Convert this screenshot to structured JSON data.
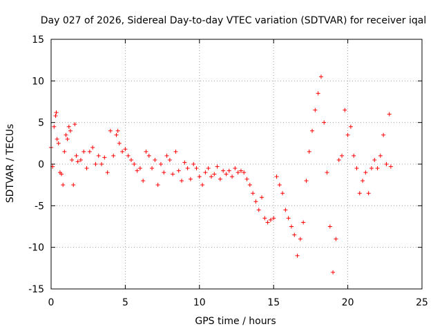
{
  "chart_data": {
    "type": "scatter",
    "title": "Day 027 of 2026, Sidereal Day-to-day VTEC variation (SDTVAR) for receiver iqal",
    "xlabel": "GPS time / hours",
    "ylabel": "SDTVAR / TECUs",
    "xlim": [
      0,
      25
    ],
    "ylim": [
      -15,
      15
    ],
    "xticks": [
      0,
      5,
      10,
      15,
      20,
      25
    ],
    "yticks": [
      -15,
      -10,
      -5,
      0,
      5,
      10,
      15
    ],
    "grid": true,
    "marker": "+",
    "series": [
      {
        "name": "SDTVAR",
        "color": "#ff0000",
        "points": [
          [
            0.0,
            2.0
          ],
          [
            0.1,
            -0.3
          ],
          [
            0.2,
            4.5
          ],
          [
            0.3,
            5.8
          ],
          [
            0.35,
            6.2
          ],
          [
            0.4,
            3.0
          ],
          [
            0.5,
            2.5
          ],
          [
            0.6,
            -1.0
          ],
          [
            0.7,
            -1.2
          ],
          [
            0.8,
            -2.5
          ],
          [
            0.9,
            1.5
          ],
          [
            1.0,
            3.5
          ],
          [
            1.1,
            3.0
          ],
          [
            1.2,
            4.5
          ],
          [
            1.3,
            4.0
          ],
          [
            1.4,
            0.5
          ],
          [
            1.5,
            -2.5
          ],
          [
            1.6,
            4.8
          ],
          [
            1.7,
            1.0
          ],
          [
            1.8,
            0.3
          ],
          [
            2.0,
            0.5
          ],
          [
            2.2,
            1.5
          ],
          [
            2.4,
            -0.5
          ],
          [
            2.6,
            1.5
          ],
          [
            2.8,
            2.0
          ],
          [
            3.0,
            0.0
          ],
          [
            3.2,
            1.0
          ],
          [
            3.4,
            0.0
          ],
          [
            3.6,
            0.8
          ],
          [
            3.8,
            -1.0
          ],
          [
            4.0,
            4.0
          ],
          [
            4.2,
            1.0
          ],
          [
            4.4,
            3.5
          ],
          [
            4.5,
            4.0
          ],
          [
            4.6,
            2.5
          ],
          [
            4.8,
            1.5
          ],
          [
            5.0,
            1.8
          ],
          [
            5.2,
            1.0
          ],
          [
            5.4,
            0.5
          ],
          [
            5.6,
            0.0
          ],
          [
            5.8,
            -0.8
          ],
          [
            6.0,
            -0.5
          ],
          [
            6.2,
            -2.0
          ],
          [
            6.4,
            1.5
          ],
          [
            6.6,
            1.0
          ],
          [
            6.8,
            -0.5
          ],
          [
            7.0,
            0.5
          ],
          [
            7.2,
            -2.5
          ],
          [
            7.4,
            0.0
          ],
          [
            7.6,
            -1.0
          ],
          [
            7.8,
            1.0
          ],
          [
            8.0,
            0.5
          ],
          [
            8.2,
            -1.2
          ],
          [
            8.4,
            1.5
          ],
          [
            8.6,
            -0.8
          ],
          [
            8.8,
            -2.0
          ],
          [
            9.0,
            0.2
          ],
          [
            9.2,
            -0.5
          ],
          [
            9.4,
            -1.8
          ],
          [
            9.6,
            0.0
          ],
          [
            9.8,
            -0.5
          ],
          [
            10.0,
            -1.5
          ],
          [
            10.2,
            -2.5
          ],
          [
            10.4,
            -1.0
          ],
          [
            10.6,
            -0.5
          ],
          [
            10.8,
            -1.5
          ],
          [
            11.0,
            -1.2
          ],
          [
            11.2,
            -0.3
          ],
          [
            11.4,
            -1.8
          ],
          [
            11.6,
            -0.8
          ],
          [
            11.8,
            -1.2
          ],
          [
            12.0,
            -0.8
          ],
          [
            12.2,
            -1.5
          ],
          [
            12.4,
            -0.5
          ],
          [
            12.6,
            -1.0
          ],
          [
            12.8,
            -0.8
          ],
          [
            13.0,
            -1.0
          ],
          [
            13.2,
            -1.8
          ],
          [
            13.4,
            -2.5
          ],
          [
            13.6,
            -3.5
          ],
          [
            13.8,
            -4.5
          ],
          [
            14.0,
            -5.5
          ],
          [
            14.2,
            -4.0
          ],
          [
            14.4,
            -6.5
          ],
          [
            14.6,
            -7.0
          ],
          [
            14.8,
            -6.7
          ],
          [
            15.0,
            -6.5
          ],
          [
            15.2,
            -1.5
          ],
          [
            15.4,
            -2.5
          ],
          [
            15.6,
            -3.5
          ],
          [
            15.8,
            -5.5
          ],
          [
            16.0,
            -6.5
          ],
          [
            16.2,
            -7.5
          ],
          [
            16.4,
            -8.5
          ],
          [
            16.6,
            -11.0
          ],
          [
            16.8,
            -9.0
          ],
          [
            17.0,
            -7.0
          ],
          [
            17.2,
            -2.0
          ],
          [
            17.4,
            1.5
          ],
          [
            17.6,
            4.0
          ],
          [
            17.8,
            6.5
          ],
          [
            18.0,
            8.5
          ],
          [
            18.2,
            10.5
          ],
          [
            18.4,
            5.0
          ],
          [
            18.6,
            -1.0
          ],
          [
            18.8,
            -7.5
          ],
          [
            19.0,
            -13.0
          ],
          [
            19.2,
            -9.0
          ],
          [
            19.4,
            0.5
          ],
          [
            19.6,
            1.0
          ],
          [
            19.8,
            6.5
          ],
          [
            20.0,
            3.5
          ],
          [
            20.2,
            4.5
          ],
          [
            20.4,
            1.0
          ],
          [
            20.6,
            -0.5
          ],
          [
            20.8,
            -3.5
          ],
          [
            21.0,
            -2.0
          ],
          [
            21.2,
            -1.0
          ],
          [
            21.4,
            -3.5
          ],
          [
            21.6,
            -0.5
          ],
          [
            21.8,
            0.5
          ],
          [
            22.0,
            -0.5
          ],
          [
            22.2,
            1.0
          ],
          [
            22.4,
            3.5
          ],
          [
            22.6,
            0.0
          ],
          [
            22.8,
            6.0
          ],
          [
            22.9,
            -0.3
          ]
        ]
      }
    ]
  }
}
